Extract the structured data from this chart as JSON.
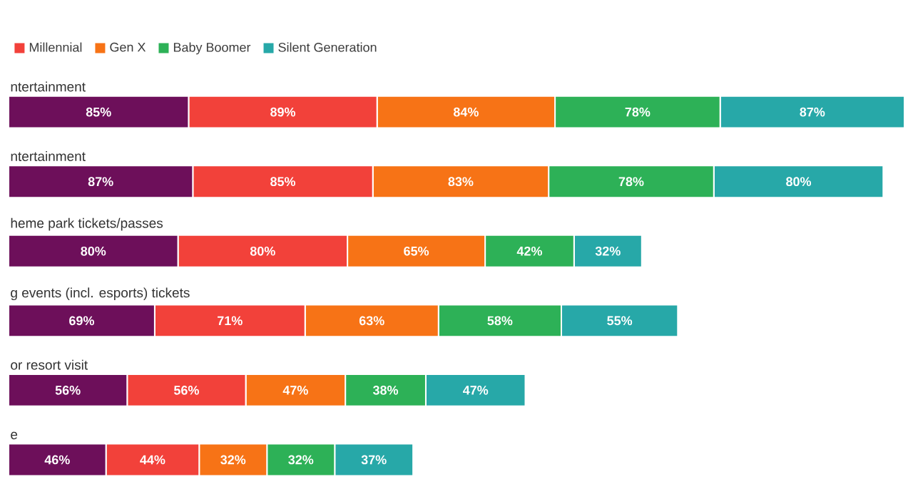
{
  "chart_data": {
    "type": "bar",
    "orientation": "horizontal",
    "stacked": true,
    "categories": [
      "ntertainment",
      "ntertainment",
      "heme park tickets/passes",
      "g events (incl. esports) tickets",
      "or resort visit",
      "e"
    ],
    "series": [
      {
        "color": "#6d0f5a",
        "values": [
          85,
          87,
          80,
          69,
          56,
          46
        ],
        "value_labels": [
          "85%",
          "87%",
          "80%",
          "69%",
          "56%",
          "46%"
        ]
      },
      {
        "name": "Millennial",
        "color": "#f2413a",
        "values": [
          89,
          85,
          80,
          71,
          56,
          44
        ],
        "value_labels": [
          "89%",
          "85%",
          "80%",
          "71%",
          "56%",
          "44%"
        ]
      },
      {
        "name": "Gen X",
        "color": "#f77316",
        "values": [
          84,
          83,
          65,
          63,
          47,
          32
        ],
        "value_labels": [
          "84%",
          "83%",
          "65%",
          "63%",
          "47%",
          "32%"
        ]
      },
      {
        "name": "Baby Boomer",
        "color": "#2db157",
        "values": [
          78,
          78,
          42,
          58,
          38,
          32
        ],
        "value_labels": [
          "78%",
          "78%",
          "42%",
          "58%",
          "38%",
          "32%"
        ]
      },
      {
        "name": "Silent Generation",
        "color": "#27a8a8",
        "values": [
          87,
          80,
          32,
          55,
          47,
          37
        ],
        "value_labels": [
          "87%",
          "80%",
          "32%",
          "55%",
          "47%",
          "37%"
        ]
      }
    ],
    "legend": "top left"
  }
}
